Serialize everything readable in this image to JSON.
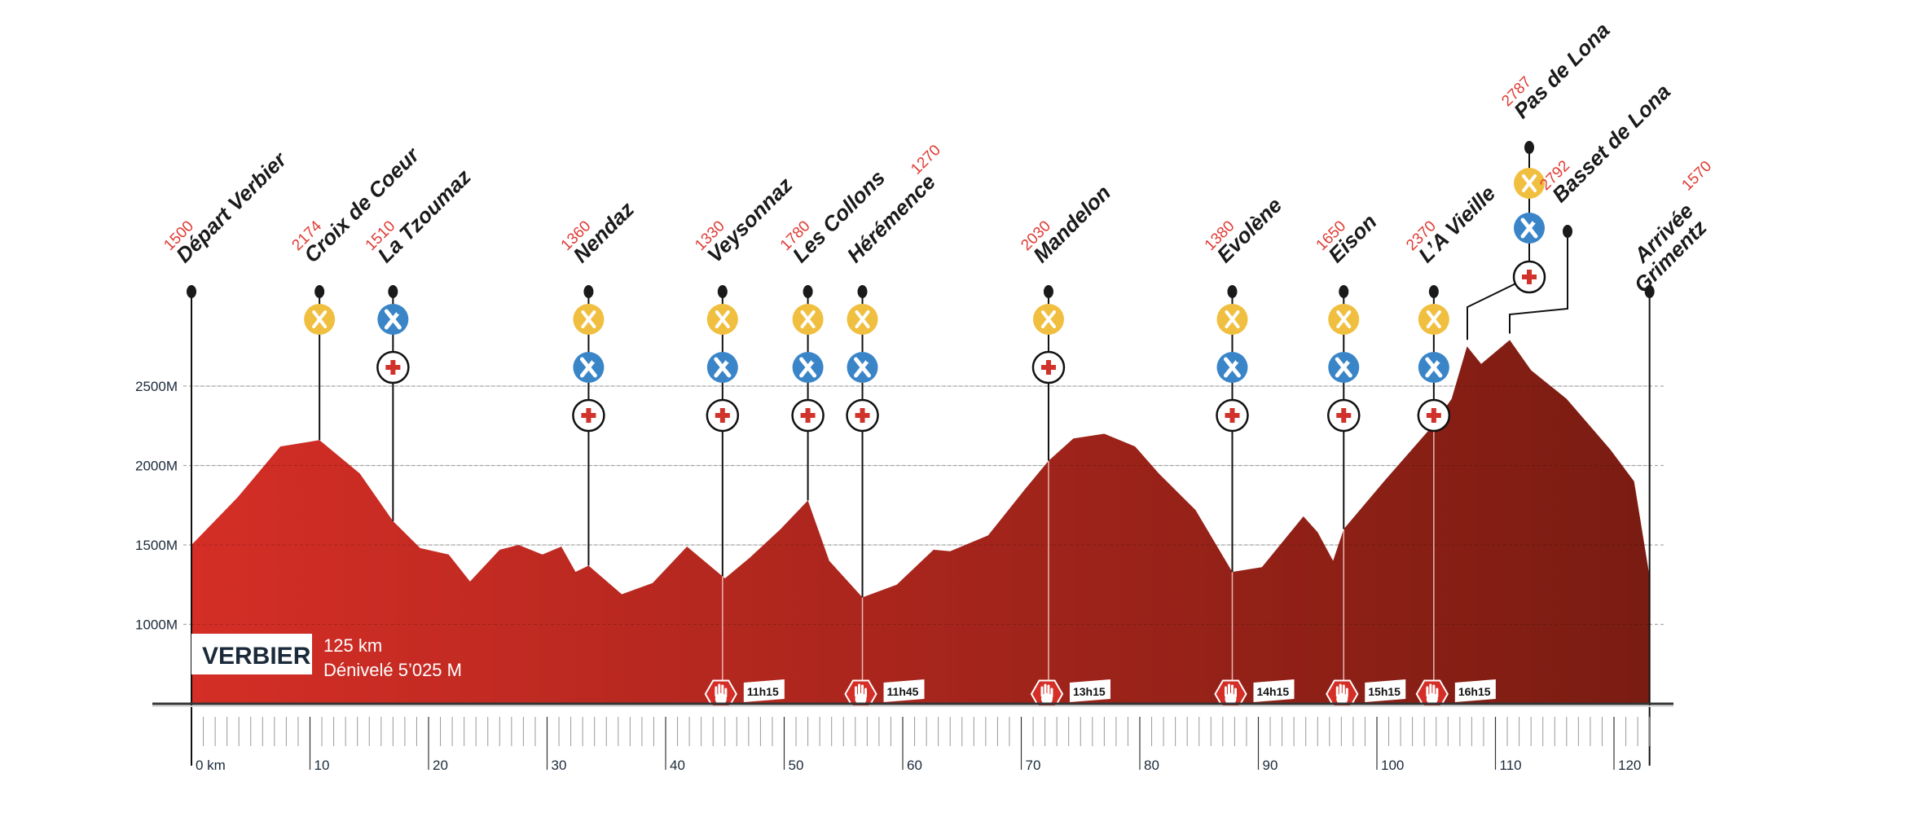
{
  "chart_data": {
    "type": "area",
    "title": "",
    "xlabel": "",
    "ylabel": "",
    "x_unit_label": "0 km",
    "x_ticks": [
      0,
      10,
      20,
      30,
      40,
      50,
      60,
      70,
      80,
      90,
      100,
      110,
      120
    ],
    "x_tick_labels": [
      "0 km",
      "10",
      "20",
      "30",
      "40",
      "50",
      "60",
      "70",
      "80",
      "90",
      "100",
      "110",
      "120"
    ],
    "y_ticks": [
      1000,
      1500,
      2000,
      2500
    ],
    "y_tick_labels": [
      "1000M",
      "1500M",
      "2000M",
      "2500M"
    ],
    "ylim": [
      500,
      3000
    ],
    "xlim": [
      0,
      123
    ],
    "grid": "horizontal dashed",
    "colors": {
      "fill_start": "#d42e26",
      "fill_end": "#7a1c12",
      "food": "#f0bf3f",
      "mechanic": "#3a85c8",
      "medical": "#d0332b",
      "elevation_label": "#e03a33",
      "text": "#1b2a3a"
    },
    "profile": [
      [
        0,
        1500
      ],
      [
        3.9,
        1800
      ],
      [
        7.5,
        2120
      ],
      [
        10.8,
        2160
      ],
      [
        14.2,
        1950
      ],
      [
        17,
        1650
      ],
      [
        19.3,
        1480
      ],
      [
        21.7,
        1440
      ],
      [
        23.5,
        1270
      ],
      [
        26,
        1470
      ],
      [
        27.6,
        1500
      ],
      [
        29.6,
        1440
      ],
      [
        31.2,
        1490
      ],
      [
        32.4,
        1330
      ],
      [
        33.5,
        1370
      ],
      [
        36.3,
        1190
      ],
      [
        38.9,
        1260
      ],
      [
        41.8,
        1490
      ],
      [
        45,
        1290
      ],
      [
        47.1,
        1420
      ],
      [
        49.7,
        1600
      ],
      [
        52,
        1780
      ],
      [
        53.8,
        1400
      ],
      [
        56.6,
        1170
      ],
      [
        59.5,
        1250
      ],
      [
        62.6,
        1470
      ],
      [
        64,
        1460
      ],
      [
        67.2,
        1560
      ],
      [
        70.3,
        1850
      ],
      [
        72.3,
        2030
      ],
      [
        74.4,
        2170
      ],
      [
        77,
        2200
      ],
      [
        79.6,
        2120
      ],
      [
        81.6,
        1950
      ],
      [
        84.7,
        1720
      ],
      [
        87.8,
        1330
      ],
      [
        90.3,
        1360
      ],
      [
        93.8,
        1680
      ],
      [
        95,
        1580
      ],
      [
        96.3,
        1400
      ],
      [
        97.2,
        1600
      ],
      [
        100.6,
        1900
      ],
      [
        104.7,
        2250
      ],
      [
        106.3,
        2420
      ],
      [
        107.6,
        2750
      ],
      [
        108.8,
        2640
      ],
      [
        111.2,
        2790
      ],
      [
        113,
        2600
      ],
      [
        116,
        2420
      ],
      [
        119.7,
        2100
      ],
      [
        121.7,
        1900
      ],
      [
        123,
        1300
      ]
    ],
    "stations": [
      {
        "km": 0,
        "name": "Départ Verbier",
        "elev": "1500",
        "services": [],
        "cutoff": null
      },
      {
        "km": 10.8,
        "name": "Croix de Coeur",
        "elev": "2174",
        "services": [
          "food"
        ],
        "cutoff": null
      },
      {
        "km": 17,
        "name": "La Tzoumaz",
        "elev": "1510",
        "services": [
          "mechanic",
          "medical"
        ],
        "cutoff": null
      },
      {
        "km": 33.5,
        "name": "Nendaz",
        "elev": "1360",
        "services": [
          "food",
          "mechanic",
          "medical"
        ],
        "cutoff": null
      },
      {
        "km": 44.8,
        "name": "Veysonnaz",
        "elev": "1330",
        "services": [
          "food",
          "mechanic",
          "medical"
        ],
        "cutoff": "11h15"
      },
      {
        "km": 52,
        "name": "Les Collons",
        "elev": "1780",
        "services": [
          "food",
          "mechanic",
          "medical"
        ],
        "cutoff": null
      },
      {
        "km": 56.6,
        "name": "Hérémence",
        "elev": "1270",
        "elev_after": true,
        "services": [
          "food",
          "mechanic",
          "medical"
        ],
        "cutoff": "11h45"
      },
      {
        "km": 72.3,
        "name": "Mandelon",
        "elev": "2030",
        "services": [
          "food",
          "medical"
        ],
        "cutoff": "13h15"
      },
      {
        "km": 87.8,
        "name": "Evolène",
        "elev": "1380",
        "services": [
          "food",
          "mechanic",
          "medical"
        ],
        "cutoff": "14h15"
      },
      {
        "km": 97.2,
        "name": "Eison",
        "elev": "1650",
        "services": [
          "food",
          "mechanic",
          "medical"
        ],
        "cutoff": "15h15"
      },
      {
        "km": 104.8,
        "name": "L’A Vieille",
        "elev": "2370",
        "services": [
          "food",
          "mechanic",
          "medical"
        ],
        "cutoff": "16h15"
      },
      {
        "km": 107.6,
        "name": "Pas de Lona",
        "elev": "2787",
        "services": [
          "food",
          "mechanic",
          "medical"
        ],
        "cutoff": null,
        "raised": "high"
      },
      {
        "km": 111.2,
        "name": "Basset de Lona",
        "elev": "2792",
        "services": [],
        "cutoff": null,
        "raised": "mid"
      },
      {
        "km": 123,
        "name": "Arrivée",
        "name2": "Grimentz",
        "elev": "1570",
        "elev_after": true,
        "services": [],
        "cutoff": null
      }
    ]
  },
  "info": {
    "brand": "VERBIER",
    "distance": "125 km",
    "elevation_gain": "Dénivelé 5’025 M"
  }
}
